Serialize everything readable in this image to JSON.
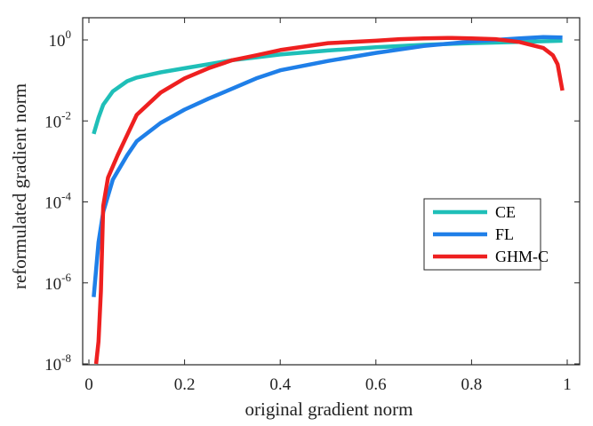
{
  "chart_data": {
    "type": "line",
    "xlabel": "original gradient norm",
    "ylabel": "reformulated gradient norm",
    "xlim": [
      0,
      1
    ],
    "ylim_log10": [
      -8,
      0.2
    ],
    "yscale": "log",
    "grid": false,
    "legend_placement": "lower-right",
    "x_ticks": [
      {
        "value": 0,
        "label": "0"
      },
      {
        "value": 0.2,
        "label": "0.2"
      },
      {
        "value": 0.4,
        "label": "0.4"
      },
      {
        "value": 0.6,
        "label": "0.6"
      },
      {
        "value": 0.8,
        "label": "0.8"
      },
      {
        "value": 1,
        "label": "1"
      }
    ],
    "y_ticks": [
      {
        "exp": 0,
        "base": "10",
        "sup": "0"
      },
      {
        "exp": -2,
        "base": "10",
        "sup": "-2"
      },
      {
        "exp": -4,
        "base": "10",
        "sup": "-4"
      },
      {
        "exp": -6,
        "base": "10",
        "sup": "-6"
      },
      {
        "exp": -8,
        "base": "10",
        "sup": "-8"
      }
    ],
    "series": [
      {
        "name": "CE",
        "color": "#1fbfb8",
        "points": [
          [
            0.01,
            -2.32
          ],
          [
            0.02,
            -1.92
          ],
          [
            0.03,
            -1.6
          ],
          [
            0.05,
            -1.27
          ],
          [
            0.08,
            -1.02
          ],
          [
            0.1,
            -0.93
          ],
          [
            0.15,
            -0.8
          ],
          [
            0.2,
            -0.7
          ],
          [
            0.25,
            -0.6
          ],
          [
            0.3,
            -0.5
          ],
          [
            0.35,
            -0.43
          ],
          [
            0.4,
            -0.36
          ],
          [
            0.5,
            -0.26
          ],
          [
            0.6,
            -0.18
          ],
          [
            0.7,
            -0.12
          ],
          [
            0.8,
            -0.08
          ],
          [
            0.9,
            -0.05
          ],
          [
            0.99,
            -0.02
          ]
        ]
      },
      {
        "name": "FL",
        "color": "#1f7fe8",
        "points": [
          [
            0.01,
            -6.35
          ],
          [
            0.02,
            -5.0
          ],
          [
            0.03,
            -4.25
          ],
          [
            0.05,
            -3.45
          ],
          [
            0.08,
            -2.85
          ],
          [
            0.1,
            -2.5
          ],
          [
            0.15,
            -2.05
          ],
          [
            0.2,
            -1.72
          ],
          [
            0.25,
            -1.45
          ],
          [
            0.3,
            -1.2
          ],
          [
            0.35,
            -0.95
          ],
          [
            0.4,
            -0.75
          ],
          [
            0.5,
            -0.52
          ],
          [
            0.6,
            -0.32
          ],
          [
            0.7,
            -0.15
          ],
          [
            0.8,
            -0.04
          ],
          [
            0.9,
            0.04
          ],
          [
            0.95,
            0.07
          ],
          [
            0.99,
            0.06
          ]
        ]
      },
      {
        "name": "GHM-C",
        "color": "#ee2020",
        "points": [
          [
            0.015,
            -8.0
          ],
          [
            0.02,
            -7.45
          ],
          [
            0.025,
            -6.2
          ],
          [
            0.03,
            -4.1
          ],
          [
            0.04,
            -3.4
          ],
          [
            0.06,
            -2.85
          ],
          [
            0.08,
            -2.35
          ],
          [
            0.1,
            -1.85
          ],
          [
            0.15,
            -1.3
          ],
          [
            0.2,
            -0.95
          ],
          [
            0.25,
            -0.7
          ],
          [
            0.3,
            -0.5
          ],
          [
            0.35,
            -0.38
          ],
          [
            0.4,
            -0.25
          ],
          [
            0.5,
            -0.08
          ],
          [
            0.6,
            -0.02
          ],
          [
            0.65,
            0.02
          ],
          [
            0.7,
            0.04
          ],
          [
            0.75,
            0.05
          ],
          [
            0.8,
            0.04
          ],
          [
            0.85,
            0.02
          ],
          [
            0.9,
            -0.05
          ],
          [
            0.95,
            -0.2
          ],
          [
            0.97,
            -0.38
          ],
          [
            0.98,
            -0.6
          ],
          [
            0.99,
            -1.25
          ]
        ]
      }
    ]
  }
}
